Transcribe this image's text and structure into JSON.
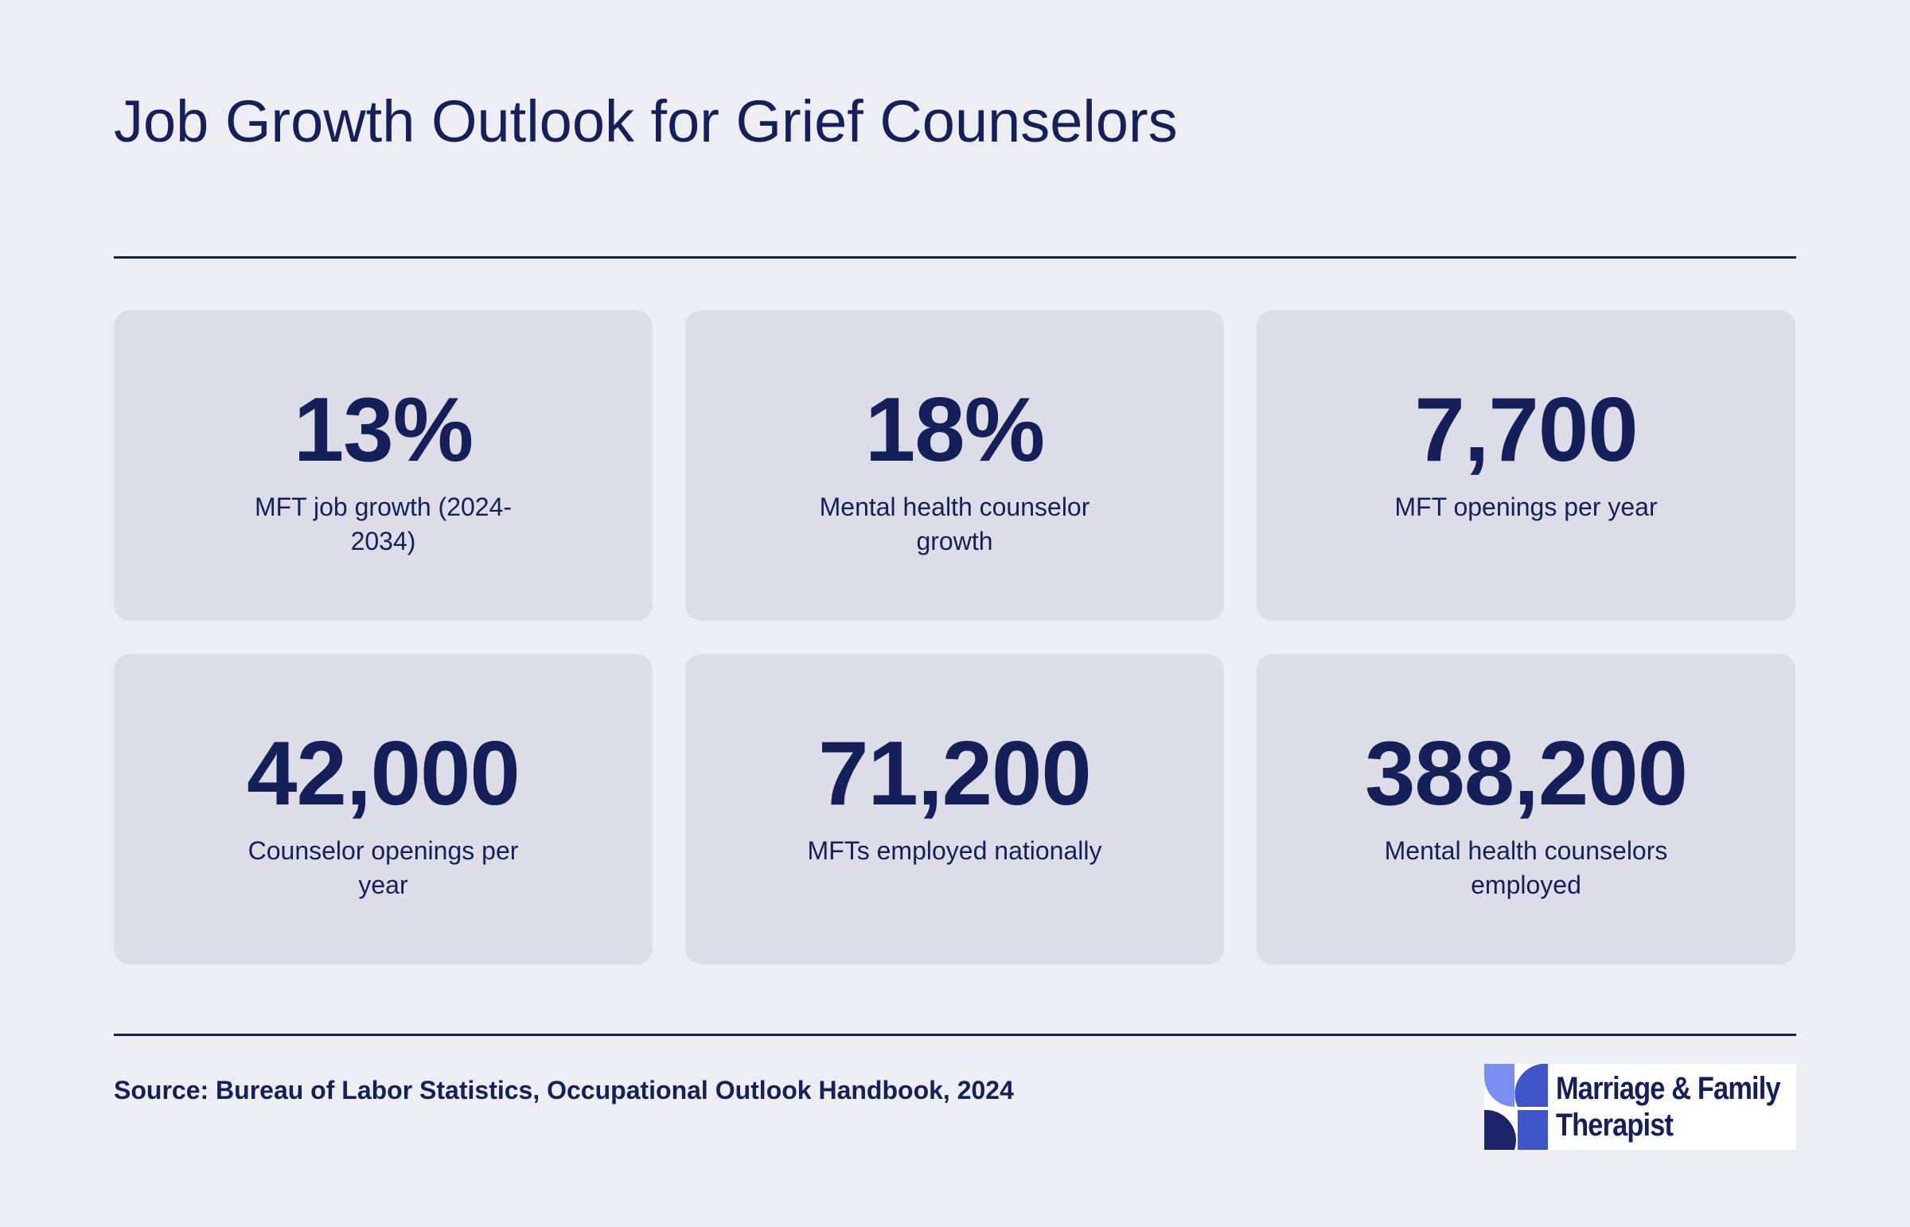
{
  "title": "Job Growth Outlook for Grief Counselors",
  "stats": [
    {
      "value": "13%",
      "label": "MFT job growth (2024-2034)"
    },
    {
      "value": "18%",
      "label": "Mental health counselor growth"
    },
    {
      "value": "7,700",
      "label": "MFT openings per year"
    },
    {
      "value": "42,000",
      "label": "Counselor openings per year"
    },
    {
      "value": "71,200",
      "label": "MFTs employed nationally"
    },
    {
      "value": "388,200",
      "label": "Mental health counselors employed"
    }
  ],
  "source": "Source: Bureau of Labor Statistics, Occupational Outlook Handbook, 2024",
  "logo": {
    "line1": "Marriage & Family",
    "line2": "Therapist",
    "colors": {
      "light": "#7b8ef2",
      "mid": "#3f56c9",
      "dark": "#1a2466"
    }
  },
  "colors": {
    "background": "#edeef4",
    "card": "#dcdde6",
    "text": "#15205a"
  }
}
